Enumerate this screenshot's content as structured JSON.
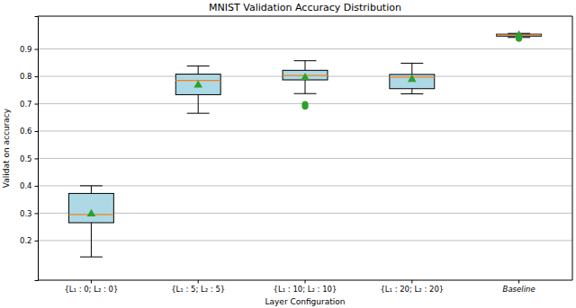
{
  "chart_data": {
    "type": "box",
    "title": "MNIST Validation Accuracy Distribution",
    "x_label": "Layer Configuration",
    "y_label": "Validat on accuracy",
    "categories": [
      "{L₁ : 0; L₂ : 0}",
      "{L₁ : 5; L₂ : 5}",
      "{L₁ : 10; L₂ : 10}",
      "{L₁ : 20; L₂ : 20}",
      "Baseline"
    ],
    "boxes": [
      {
        "low": 0.14,
        "q1": 0.265,
        "median": 0.295,
        "q3": 0.372,
        "high": 0.4,
        "mean": 0.297,
        "outliers": []
      },
      {
        "low": 0.665,
        "q1": 0.733,
        "median": 0.785,
        "q3": 0.808,
        "high": 0.838,
        "mean": 0.768,
        "outliers": []
      },
      {
        "low": 0.737,
        "q1": 0.787,
        "median": 0.803,
        "q3": 0.822,
        "high": 0.857,
        "mean": 0.795,
        "outliers": [
          0.698,
          0.69
        ]
      },
      {
        "low": 0.736,
        "q1": 0.755,
        "median": 0.797,
        "q3": 0.807,
        "high": 0.848,
        "mean": 0.789,
        "outliers": []
      },
      {
        "low": 0.942,
        "q1": 0.947,
        "median": 0.951,
        "q3": 0.954,
        "high": 0.957,
        "mean": 0.95,
        "outliers": [
          0.938
        ]
      }
    ],
    "color": "#add8e6",
    "ylim": [
      0.055,
      1.02
    ],
    "yticks": [
      0.2,
      0.3,
      0.4,
      0.5,
      0.6,
      0.7,
      0.8,
      0.9
    ],
    "grid": true
  }
}
